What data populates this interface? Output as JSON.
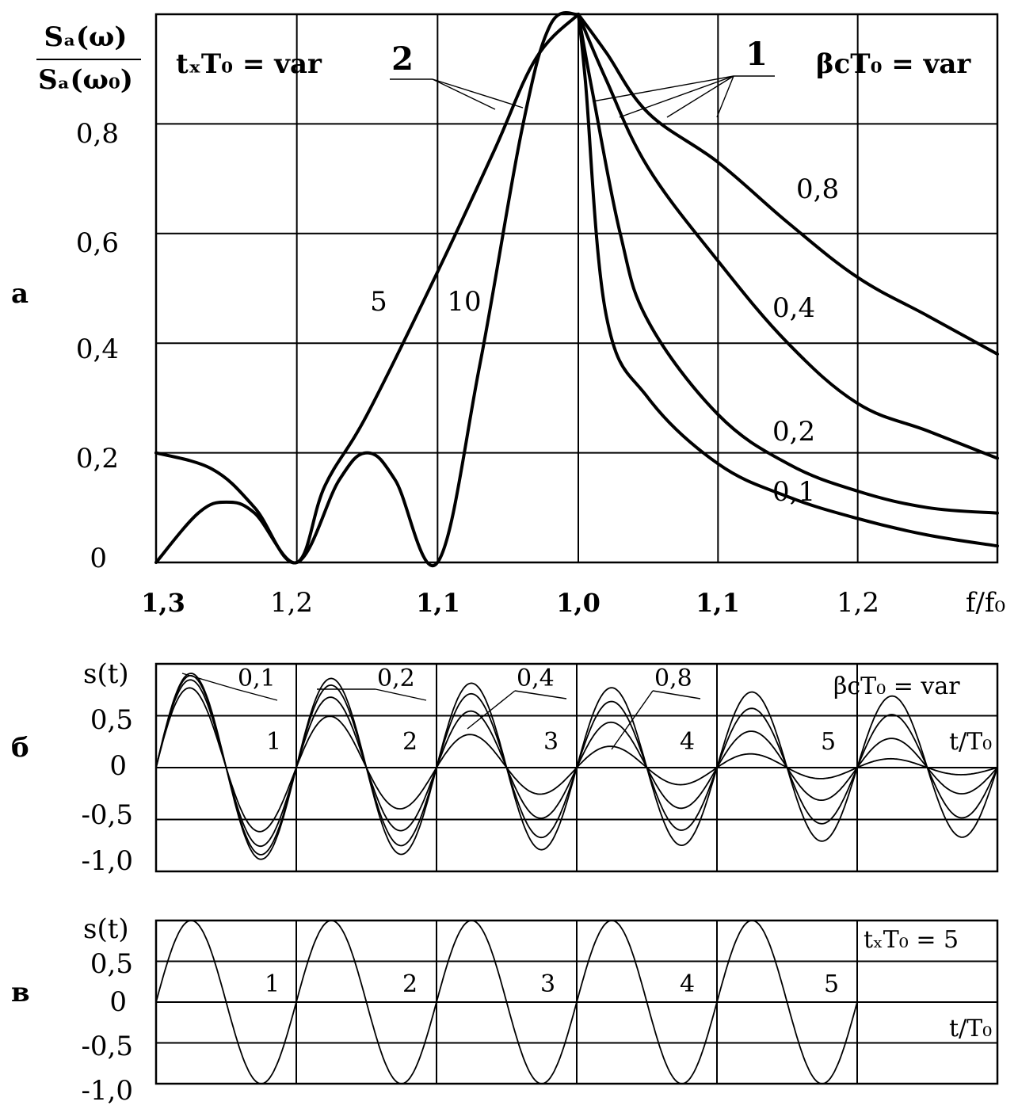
{
  "panel_letters": {
    "a": "а",
    "b": "б",
    "c": "в"
  },
  "chart_data": [
    {
      "type": "line",
      "panel": "а",
      "ylabel_num": "Sₐ(ω)",
      "ylabel_den": "Sₐ(ω₀)",
      "xlabel": "f/f₀",
      "x_ticks": [
        "1,3",
        "1,2",
        "1,1",
        "1,0",
        "1,1",
        "1,2"
      ],
      "y_ticks": [
        "0",
        "0,2",
        "0,4",
        "0,6",
        "0,8"
      ],
      "ylim": [
        0,
        1.0
      ],
      "grid": true,
      "note_left": "tₓT₀ = var",
      "note_right": "βcT₀ = var",
      "group_labels": {
        "left": "2",
        "right": "1"
      },
      "series": [
        {
          "name": "5",
          "group": "2",
          "points": [
            [
              -1.3,
              0.0
            ],
            [
              -1.27,
              0.09
            ],
            [
              -1.25,
              0.11
            ],
            [
              -1.23,
              0.09
            ],
            [
              -1.2,
              0.0
            ],
            [
              -1.18,
              0.14
            ],
            [
              -1.15,
              0.27
            ],
            [
              -1.1,
              0.53
            ],
            [
              -1.06,
              0.75
            ],
            [
              -1.03,
              0.92
            ],
            [
              -1.0,
              1.0
            ]
          ]
        },
        {
          "name": "10",
          "group": "2",
          "points": [
            [
              -1.3,
              0.2
            ],
            [
              -1.26,
              0.17
            ],
            [
              -1.23,
              0.1
            ],
            [
              -1.2,
              0.0
            ],
            [
              -1.17,
              0.15
            ],
            [
              -1.15,
              0.2
            ],
            [
              -1.13,
              0.15
            ],
            [
              -1.1,
              0.0
            ],
            [
              -1.07,
              0.36
            ],
            [
              -1.04,
              0.79
            ],
            [
              -1.02,
              0.98
            ],
            [
              -1.0,
              1.0
            ]
          ]
        },
        {
          "name": "0,8",
          "group": "1",
          "points": [
            [
              -1.0,
              1.0
            ],
            [
              1.02,
              0.93
            ],
            [
              1.05,
              0.82
            ],
            [
              1.1,
              0.73
            ],
            [
              1.15,
              0.62
            ],
            [
              1.2,
              0.52
            ],
            [
              1.25,
              0.45
            ],
            [
              1.3,
              0.38
            ]
          ]
        },
        {
          "name": "0,4",
          "group": "1",
          "points": [
            [
              -1.0,
              1.0
            ],
            [
              1.02,
              0.88
            ],
            [
              1.05,
              0.72
            ],
            [
              1.1,
              0.55
            ],
            [
              1.15,
              0.4
            ],
            [
              1.2,
              0.29
            ],
            [
              1.25,
              0.24
            ],
            [
              1.3,
              0.19
            ]
          ]
        },
        {
          "name": "0,2",
          "group": "1",
          "points": [
            [
              -1.0,
              1.0
            ],
            [
              1.01,
              0.86
            ],
            [
              1.03,
              0.6
            ],
            [
              1.05,
              0.44
            ],
            [
              1.1,
              0.27
            ],
            [
              1.15,
              0.18
            ],
            [
              1.2,
              0.13
            ],
            [
              1.25,
              0.1
            ],
            [
              1.3,
              0.09
            ]
          ]
        },
        {
          "name": "0,1",
          "group": "1",
          "points": [
            [
              -1.0,
              1.0
            ],
            [
              1.005,
              0.88
            ],
            [
              1.02,
              0.45
            ],
            [
              1.05,
              0.3
            ],
            [
              1.1,
              0.18
            ],
            [
              1.15,
              0.12
            ],
            [
              1.2,
              0.08
            ],
            [
              1.25,
              0.05
            ],
            [
              1.3,
              0.03
            ]
          ]
        }
      ]
    },
    {
      "type": "line",
      "panel": "б",
      "ylabel": "s(t)",
      "xlabel": "t/T₀",
      "y_ticks": [
        "0,5",
        "0",
        "-0,5",
        "-1,0"
      ],
      "ylim": [
        -1.0,
        1.0
      ],
      "xlim": [
        0,
        6
      ],
      "grid": true,
      "note": "βcT₀ = var",
      "period_labels": [
        "1",
        "2",
        "3",
        "4",
        "5"
      ],
      "series": [
        {
          "name": "0,1",
          "beta_T0": 0.1
        },
        {
          "name": "0,2",
          "beta_T0": 0.2
        },
        {
          "name": "0,4",
          "beta_T0": 0.4
        },
        {
          "name": "0,8",
          "beta_T0": 0.8
        }
      ]
    },
    {
      "type": "line",
      "panel": "в",
      "ylabel": "s(t)",
      "xlabel": "t/T₀",
      "y_ticks": [
        "0,5",
        "0",
        "-0,5",
        "-1,0"
      ],
      "ylim": [
        -1.0,
        1.0
      ],
      "xlim": [
        0,
        6
      ],
      "grid": true,
      "note": "tₓT₀ = 5",
      "period_labels": [
        "1",
        "2",
        "3",
        "4",
        "5"
      ],
      "series": [
        {
          "name": "",
          "amplitude": 1.0,
          "periods": 5
        }
      ]
    }
  ]
}
